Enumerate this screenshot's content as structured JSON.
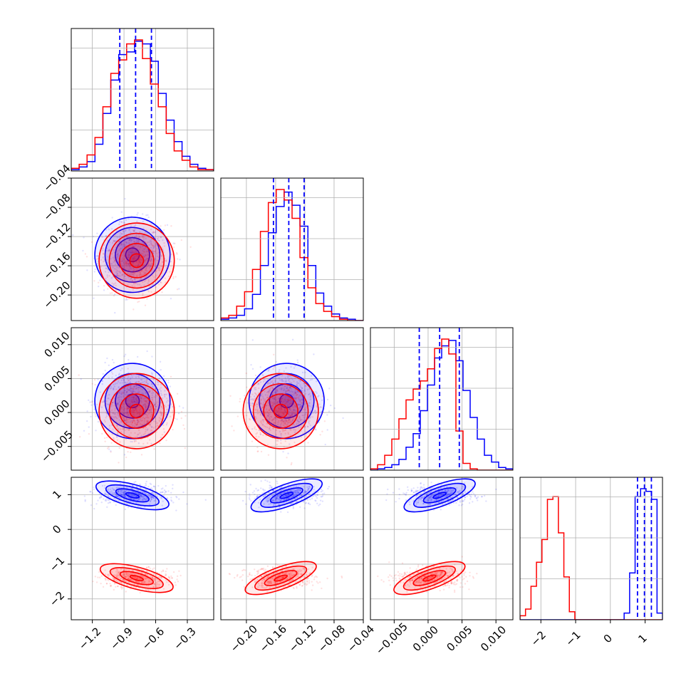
{
  "chart_data": {
    "type": "corner",
    "grid": true,
    "series": [
      {
        "color": "#0000ff",
        "style": "blue"
      },
      {
        "color": "#ff0000",
        "style": "red"
      }
    ],
    "parameters": [
      {
        "range": [
          -1.4,
          -0.05
        ],
        "ticks": [
          "−1.2",
          "−0.9",
          "−0.6",
          "−0.3"
        ],
        "tick_values": [
          -1.2,
          -0.9,
          -0.6,
          -0.3
        ],
        "quantiles_blue": [
          -0.94,
          -0.79,
          -0.64
        ],
        "hist_blue": [
          1,
          3,
          7,
          20,
          43,
          68,
          87,
          89,
          97,
          95,
          82,
          58,
          38,
          22,
          11,
          5,
          2,
          1
        ],
        "hist_red": [
          2,
          5,
          12,
          25,
          48,
          73,
          83,
          95,
          98,
          84,
          65,
          48,
          28,
          15,
          8,
          3,
          1,
          1
        ],
        "centers": {
          "blue": -0.82,
          "red": -0.78
        }
      },
      {
        "range": [
          -0.235,
          -0.04
        ],
        "ticks": [
          "−0.20",
          "−0.16",
          "−0.12",
          "−0.08",
          "−0.04"
        ],
        "tick_values": [
          -0.2,
          -0.16,
          -0.12,
          -0.08,
          -0.04
        ],
        "quantiles_blue": [
          -0.163,
          -0.142,
          -0.121
        ],
        "hist_blue": [
          1,
          2,
          4,
          9,
          20,
          42,
          67,
          87,
          98,
          88,
          72,
          42,
          21,
          11,
          5,
          2,
          1,
          0
        ],
        "hist_red": [
          2,
          4,
          11,
          22,
          39,
          68,
          90,
          100,
          92,
          78,
          48,
          25,
          13,
          7,
          3,
          1,
          0,
          0
        ],
        "centers": {
          "blue": -0.145,
          "red": -0.153
        }
      },
      {
        "range": [
          -0.0085,
          0.0125
        ],
        "ticks": [
          "−0.005",
          "0.000",
          "0.005",
          "0.010"
        ],
        "tick_values": [
          -0.005,
          0.0,
          0.005,
          0.01
        ],
        "quantiles_blue": [
          -0.0013,
          0.0017,
          0.0046
        ],
        "hist_blue": [
          0,
          1,
          2,
          4,
          8,
          17,
          27,
          44,
          63,
          83,
          92,
          96,
          81,
          59,
          39,
          23,
          11,
          6,
          2,
          1
        ],
        "hist_red": [
          1,
          4,
          11,
          23,
          38,
          52,
          60,
          66,
          75,
          90,
          97,
          86,
          29,
          5,
          1,
          0,
          0,
          0,
          0,
          0
        ],
        "centers": {
          "blue": 0.0017,
          "red": 0.0002
        }
      },
      {
        "range": [
          -2.6,
          1.5
        ],
        "ticks": [
          "−2",
          "−1",
          "0",
          "1"
        ],
        "tick_values": [
          -2,
          -1,
          0,
          1
        ],
        "quantiles_blue": [
          0.78,
          0.98,
          1.18
        ],
        "hist_blue": [
          0,
          0,
          0,
          0,
          0,
          0,
          0,
          0,
          0,
          0,
          0,
          0,
          0,
          0,
          0,
          0,
          0,
          0,
          0,
          5,
          35,
          92,
          98,
          96,
          90,
          5
        ],
        "hist_red": [
          3,
          8,
          25,
          43,
          60,
          90,
          92,
          65,
          32,
          6,
          0,
          0,
          0,
          0,
          0,
          0,
          0,
          0,
          0,
          0,
          0,
          0,
          0,
          0,
          0,
          0
        ],
        "centers": {
          "blue": 0.98,
          "red": -1.4
        }
      }
    ]
  }
}
